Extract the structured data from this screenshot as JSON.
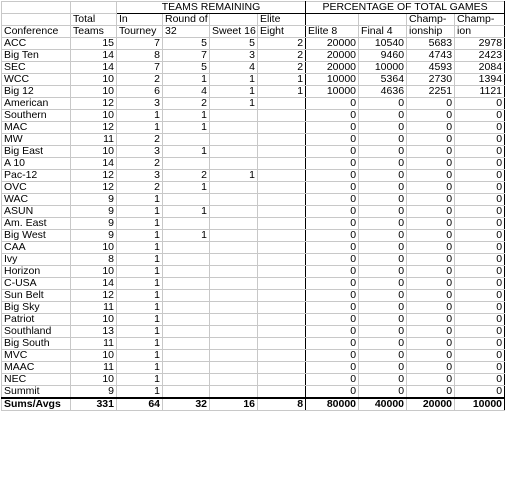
{
  "headers": {
    "group_teams": "TEAMS REMAINING",
    "group_pct": "PERCENTAGE OF TOTAL GAMES",
    "row1": [
      "",
      "Total",
      "In",
      "Round of",
      "",
      "Elite",
      "",
      "",
      "Champ-",
      "Champ-"
    ],
    "row2": [
      "Conference",
      "Teams",
      "Tourney",
      "32",
      "Sweet 16",
      "Eight",
      "Elite 8",
      "Final 4",
      "ionship",
      "ion"
    ]
  },
  "rows": [
    {
      "c": "ACC",
      "v": [
        "15",
        "7",
        "5",
        "5",
        "2",
        "20000",
        "10540",
        "5683",
        "2978"
      ]
    },
    {
      "c": "Big Ten",
      "v": [
        "14",
        "8",
        "7",
        "3",
        "2",
        "20000",
        "9460",
        "4743",
        "2423"
      ]
    },
    {
      "c": "SEC",
      "v": [
        "14",
        "7",
        "5",
        "4",
        "2",
        "20000",
        "10000",
        "4593",
        "2084"
      ]
    },
    {
      "c": "WCC",
      "v": [
        "10",
        "2",
        "1",
        "1",
        "1",
        "10000",
        "5364",
        "2730",
        "1394"
      ]
    },
    {
      "c": "Big 12",
      "v": [
        "10",
        "6",
        "4",
        "1",
        "1",
        "10000",
        "4636",
        "2251",
        "1121"
      ]
    },
    {
      "c": "American",
      "v": [
        "12",
        "3",
        "2",
        "1",
        "",
        "0",
        "0",
        "0",
        "0"
      ]
    },
    {
      "c": "Southern",
      "v": [
        "10",
        "1",
        "1",
        "",
        "",
        "0",
        "0",
        "0",
        "0"
      ]
    },
    {
      "c": "MAC",
      "v": [
        "12",
        "1",
        "1",
        "",
        "",
        "0",
        "0",
        "0",
        "0"
      ]
    },
    {
      "c": "MW",
      "v": [
        "11",
        "2",
        "",
        "",
        "",
        "0",
        "0",
        "0",
        "0"
      ]
    },
    {
      "c": "Big East",
      "v": [
        "10",
        "3",
        "1",
        "",
        "",
        "0",
        "0",
        "0",
        "0"
      ]
    },
    {
      "c": "A 10",
      "v": [
        "14",
        "2",
        "",
        "",
        "",
        "0",
        "0",
        "0",
        "0"
      ]
    },
    {
      "c": "Pac-12",
      "v": [
        "12",
        "3",
        "2",
        "1",
        "",
        "0",
        "0",
        "0",
        "0"
      ]
    },
    {
      "c": "OVC",
      "v": [
        "12",
        "2",
        "1",
        "",
        "",
        "0",
        "0",
        "0",
        "0"
      ]
    },
    {
      "c": "WAC",
      "v": [
        "9",
        "1",
        "",
        "",
        "",
        "0",
        "0",
        "0",
        "0"
      ]
    },
    {
      "c": "ASUN",
      "v": [
        "9",
        "1",
        "1",
        "",
        "",
        "0",
        "0",
        "0",
        "0"
      ]
    },
    {
      "c": "Am. East",
      "v": [
        "9",
        "1",
        "",
        "",
        "",
        "0",
        "0",
        "0",
        "0"
      ]
    },
    {
      "c": "Big West",
      "v": [
        "9",
        "1",
        "1",
        "",
        "",
        "0",
        "0",
        "0",
        "0"
      ]
    },
    {
      "c": "CAA",
      "v": [
        "10",
        "1",
        "",
        "",
        "",
        "0",
        "0",
        "0",
        "0"
      ]
    },
    {
      "c": "Ivy",
      "v": [
        "8",
        "1",
        "",
        "",
        "",
        "0",
        "0",
        "0",
        "0"
      ]
    },
    {
      "c": "Horizon",
      "v": [
        "10",
        "1",
        "",
        "",
        "",
        "0",
        "0",
        "0",
        "0"
      ]
    },
    {
      "c": "C-USA",
      "v": [
        "14",
        "1",
        "",
        "",
        "",
        "0",
        "0",
        "0",
        "0"
      ]
    },
    {
      "c": "Sun Belt",
      "v": [
        "12",
        "1",
        "",
        "",
        "",
        "0",
        "0",
        "0",
        "0"
      ]
    },
    {
      "c": "Big Sky",
      "v": [
        "11",
        "1",
        "",
        "",
        "",
        "0",
        "0",
        "0",
        "0"
      ]
    },
    {
      "c": "Patriot",
      "v": [
        "10",
        "1",
        "",
        "",
        "",
        "0",
        "0",
        "0",
        "0"
      ]
    },
    {
      "c": "Southland",
      "v": [
        "13",
        "1",
        "",
        "",
        "",
        "0",
        "0",
        "0",
        "0"
      ]
    },
    {
      "c": "Big South",
      "v": [
        "11",
        "1",
        "",
        "",
        "",
        "0",
        "0",
        "0",
        "0"
      ]
    },
    {
      "c": "MVC",
      "v": [
        "10",
        "1",
        "",
        "",
        "",
        "0",
        "0",
        "0",
        "0"
      ]
    },
    {
      "c": "MAAC",
      "v": [
        "11",
        "1",
        "",
        "",
        "",
        "0",
        "0",
        "0",
        "0"
      ]
    },
    {
      "c": "NEC",
      "v": [
        "10",
        "1",
        "",
        "",
        "",
        "0",
        "0",
        "0",
        "0"
      ]
    },
    {
      "c": "Summit",
      "v": [
        "9",
        "1",
        "",
        "",
        "",
        "0",
        "0",
        "0",
        "0"
      ]
    }
  ],
  "totals": {
    "c": "Sums/Avgs",
    "v": [
      "331",
      "64",
      "32",
      "16",
      "8",
      "80000",
      "40000",
      "20000",
      "10000"
    ]
  }
}
